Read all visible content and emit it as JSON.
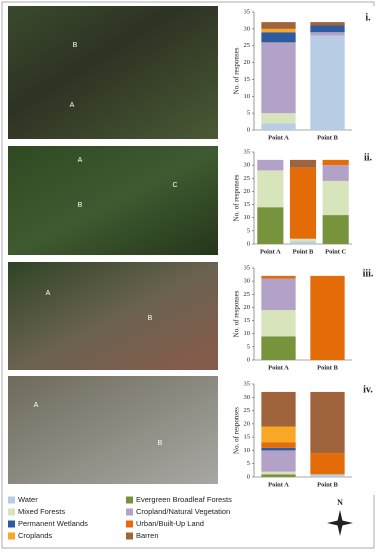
{
  "panels": [
    {
      "labels": [
        "B",
        "A"
      ]
    },
    {
      "labels": [
        "A",
        "B",
        "C"
      ]
    },
    {
      "labels": [
        "A",
        "B"
      ]
    },
    {
      "labels": [
        "A",
        "B"
      ]
    }
  ],
  "chart_data": [
    {
      "type": "bar",
      "stacked": true,
      "panel": "i.",
      "ylabel": "No. of responses",
      "categories": [
        "Point A",
        "Point B"
      ],
      "ylim": [
        0,
        35
      ],
      "yticks": [
        0,
        5,
        10,
        15,
        20,
        25,
        30,
        35
      ],
      "series": [
        {
          "name": "Water",
          "color": "#b8cce4",
          "values": [
            2,
            28
          ]
        },
        {
          "name": "Mixed Forests",
          "color": "#d7e4bc",
          "values": [
            3,
            0
          ]
        },
        {
          "name": "Cropland/Natural Vegetation",
          "color": "#b3a2c7",
          "values": [
            21,
            1
          ]
        },
        {
          "name": "Permanent Wetlands",
          "color": "#2e5aa0",
          "values": [
            3,
            2
          ]
        },
        {
          "name": "Croplands",
          "color": "#f9a825",
          "values": [
            1,
            0
          ]
        },
        {
          "name": "Barren",
          "color": "#a0643c",
          "values": [
            2,
            1
          ]
        }
      ]
    },
    {
      "type": "bar",
      "stacked": true,
      "panel": "ii.",
      "ylabel": "No. of responses",
      "categories": [
        "Point A",
        "Point B",
        "Point C"
      ],
      "ylim": [
        0,
        35
      ],
      "yticks": [
        0,
        5,
        10,
        15,
        20,
        25,
        30,
        35
      ],
      "series": [
        {
          "name": "Water",
          "color": "#b8cce4",
          "values": [
            0,
            1,
            0
          ]
        },
        {
          "name": "Evergreen Broadleaf Forests",
          "color": "#77933c",
          "values": [
            14,
            0,
            11
          ]
        },
        {
          "name": "Mixed Forests",
          "color": "#d7e4bc",
          "values": [
            14,
            1,
            13
          ]
        },
        {
          "name": "Cropland/Natural Vegetation",
          "color": "#b3a2c7",
          "values": [
            4,
            0,
            6
          ]
        },
        {
          "name": "Urban/Built-Up Land",
          "color": "#e36c09",
          "values": [
            0,
            27,
            2
          ]
        },
        {
          "name": "Barren",
          "color": "#a0643c",
          "values": [
            0,
            3,
            0
          ]
        }
      ]
    },
    {
      "type": "bar",
      "stacked": true,
      "panel": "iii.",
      "ylabel": "No. of responses",
      "categories": [
        "Point A",
        "Point B"
      ],
      "ylim": [
        0,
        35
      ],
      "yticks": [
        0,
        5,
        10,
        15,
        20,
        25,
        30,
        35
      ],
      "series": [
        {
          "name": "Evergreen Broadleaf Forests",
          "color": "#77933c",
          "values": [
            9,
            0
          ]
        },
        {
          "name": "Mixed Forests",
          "color": "#d7e4bc",
          "values": [
            10,
            0
          ]
        },
        {
          "name": "Cropland/Natural Vegetation",
          "color": "#b3a2c7",
          "values": [
            12,
            0
          ]
        },
        {
          "name": "Urban/Built-Up Land",
          "color": "#e36c09",
          "values": [
            1,
            32
          ]
        }
      ]
    },
    {
      "type": "bar",
      "stacked": true,
      "panel": "iv.",
      "ylabel": "No. of responses",
      "categories": [
        "Point A",
        "Point B"
      ],
      "ylim": [
        0,
        35
      ],
      "yticks": [
        0,
        5,
        10,
        15,
        20,
        25,
        30,
        35
      ],
      "series": [
        {
          "name": "Water",
          "color": "#b8cce4",
          "values": [
            0,
            1
          ]
        },
        {
          "name": "Evergreen Broadleaf Forests",
          "color": "#77933c",
          "values": [
            1,
            0
          ]
        },
        {
          "name": "Mixed Forests",
          "color": "#d7e4bc",
          "values": [
            1,
            0
          ]
        },
        {
          "name": "Cropland/Natural Vegetation",
          "color": "#b3a2c7",
          "values": [
            8,
            0
          ]
        },
        {
          "name": "Permanent Wetlands",
          "color": "#2e5aa0",
          "values": [
            1,
            0
          ]
        },
        {
          "name": "Urban/Built-Up Land",
          "color": "#e36c09",
          "values": [
            2,
            8
          ]
        },
        {
          "name": "Croplands",
          "color": "#f9a825",
          "values": [
            6,
            0
          ]
        },
        {
          "name": "Barren",
          "color": "#a0643c",
          "values": [
            13,
            23
          ]
        }
      ]
    }
  ],
  "legend": [
    {
      "name": "Water",
      "color": "#b8cce4"
    },
    {
      "name": "Evergreen Broadleaf Forests",
      "color": "#77933c"
    },
    {
      "name": "Mixed Forests",
      "color": "#d7e4bc"
    },
    {
      "name": "Cropland/Natural Vegetation",
      "color": "#b3a2c7"
    },
    {
      "name": "Permanent Wetlands",
      "color": "#2e5aa0"
    },
    {
      "name": "Urban/Built-Up Land",
      "color": "#e36c09"
    },
    {
      "name": "Croplands",
      "color": "#f9a825"
    },
    {
      "name": "Barren",
      "color": "#a0643c"
    }
  ],
  "compass": "N"
}
